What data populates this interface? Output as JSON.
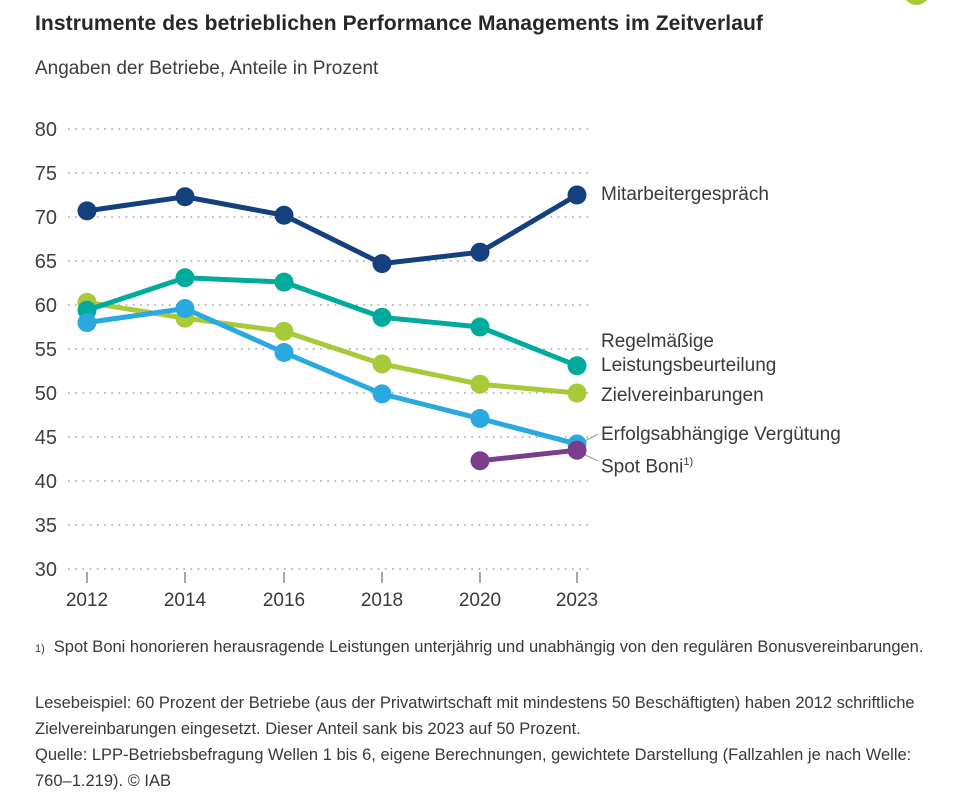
{
  "header": {
    "title": "Instrumente des betrieblichen Performance Managements im Zeitverlauf",
    "subtitle": "Angaben der Betriebe, Anteile in Prozent"
  },
  "chart_data": {
    "type": "line",
    "title": "Instrumente des betrieblichen Performance Managements im Zeitverlauf",
    "subtitle": "Angaben der Betriebe, Anteile in Prozent",
    "unit": "Prozent",
    "categories": [
      "2012",
      "2014",
      "2016",
      "2018",
      "2020",
      "2023"
    ],
    "ylim": [
      30,
      80
    ],
    "y_ticks": [
      80,
      75,
      70,
      65,
      60,
      55,
      50,
      45,
      40,
      35,
      30
    ],
    "grid": "horizontal-dotted",
    "legend_position": "right-of-line-ends",
    "series": [
      {
        "name": "Mitarbeitergespräch",
        "color": "#14407e",
        "values": [
          70.7,
          72.3,
          70.2,
          64.7,
          66.0,
          72.5
        ]
      },
      {
        "name": "Regelmäßige Leistungsbeurteilung",
        "color": "#00ab9e",
        "values": [
          59.4,
          63.1,
          62.6,
          58.6,
          57.5,
          53.1
        ]
      },
      {
        "name": "Zielvereinbarungen",
        "color": "#a8c938",
        "values": [
          60.3,
          58.5,
          57.0,
          53.3,
          51.0,
          50.0
        ]
      },
      {
        "name": "Erfolgsabhängige Vergütung",
        "color": "#29a9e0",
        "values": [
          58.0,
          59.6,
          54.6,
          49.9,
          47.1,
          44.2
        ]
      },
      {
        "name": "Spot Boni",
        "footnote_marker": "1)",
        "color": "#7b3d8a",
        "values": [
          null,
          null,
          null,
          null,
          42.3,
          43.5
        ]
      }
    ]
  },
  "footnotes": {
    "note1_marker": "1)",
    "note1_text": "Spot Boni honorieren herausragende Leistungen unterjährig und unabhängig von den regulären Bonusvereinbarungen.",
    "lesebeispiel": "Lesebeispiel: 60 Prozent der Betriebe (aus der Privatwirtschaft mit mindestens 50 Beschäftigten) haben 2012 schriftliche Zielvereinbarungen eingesetzt. Dieser Anteil sank bis 2023 auf 50 Prozent.",
    "quelle": "Quelle: LPP-Betriebsbefragung Wellen 1 bis 6, eigene Berechnungen, gewichtete Darstellung (Fallzahlen je nach Welle: 760–1.219).  © IAB"
  },
  "colors": {
    "grid": "#b5b5b5",
    "tick": "#8f8f8f",
    "axis_text": "#3f3f3f",
    "connector": "#9a9a9a",
    "deco_green": "#a8c938"
  }
}
